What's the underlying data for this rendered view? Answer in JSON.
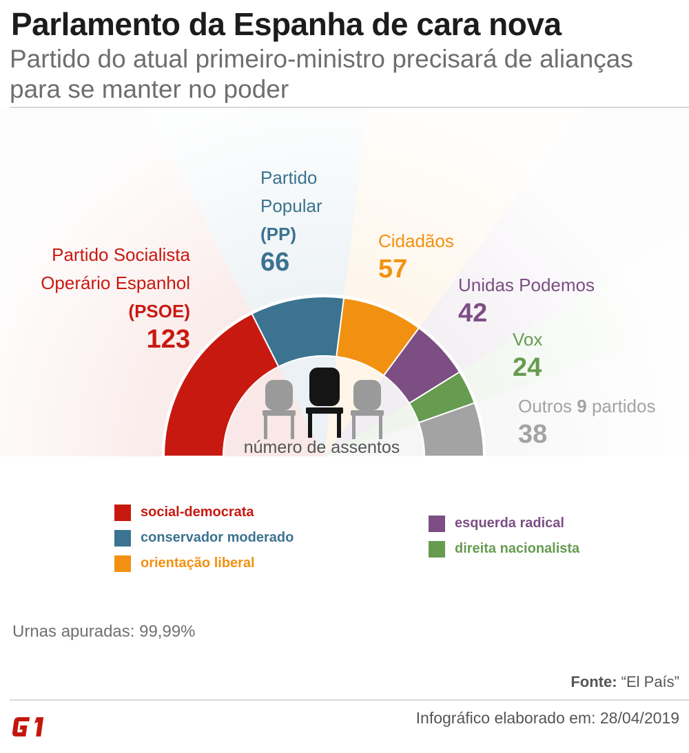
{
  "header": {
    "title": "Parlamento da Espanha de cara nova",
    "subtitle": "Partido do atual primeiro-ministro precisará de alianças para se manter no poder"
  },
  "chart_data": {
    "type": "pie",
    "variant": "semicircle-parliament",
    "center_label": "número de assentos",
    "slices": [
      {
        "name_lines": [
          "Partido Socialista",
          "Operário Espanhol"
        ],
        "abbr": "(PSOE)",
        "value": 123,
        "color": "#c81910"
      },
      {
        "name_lines": [
          "Partido",
          "Popular"
        ],
        "abbr": "(PP)",
        "value": 66,
        "color": "#3b7390"
      },
      {
        "name_lines": [
          "Cidadãos"
        ],
        "abbr": "",
        "value": 57,
        "color": "#f29111"
      },
      {
        "name_lines": [
          "Unidas Podemos"
        ],
        "abbr": "",
        "value": 42,
        "color": "#7c4e83"
      },
      {
        "name_lines": [
          "Vox"
        ],
        "abbr": "",
        "value": 24,
        "color": "#669b50"
      },
      {
        "name_prefix": "Outros",
        "name_count": "9",
        "name_suffix": "partidos",
        "value": 38,
        "color": "#a3a3a3"
      }
    ]
  },
  "legend": {
    "left": [
      {
        "label": "social-democrata",
        "color": "#c81910"
      },
      {
        "label": "conservador moderado",
        "color": "#3b7390"
      },
      {
        "label": "orientação liberal",
        "color": "#f29111"
      }
    ],
    "right": [
      {
        "label": "esquerda radical",
        "color": "#7c4e83"
      },
      {
        "label": "direita nacionalista",
        "color": "#669b50"
      }
    ]
  },
  "footer": {
    "urnas": "Urnas apuradas: 99,99%",
    "fonte_label": "Fonte:",
    "fonte_value": "“El País”",
    "credit": "Infográfico elaborado em: 28/04/2019",
    "logo_text": "G1"
  }
}
